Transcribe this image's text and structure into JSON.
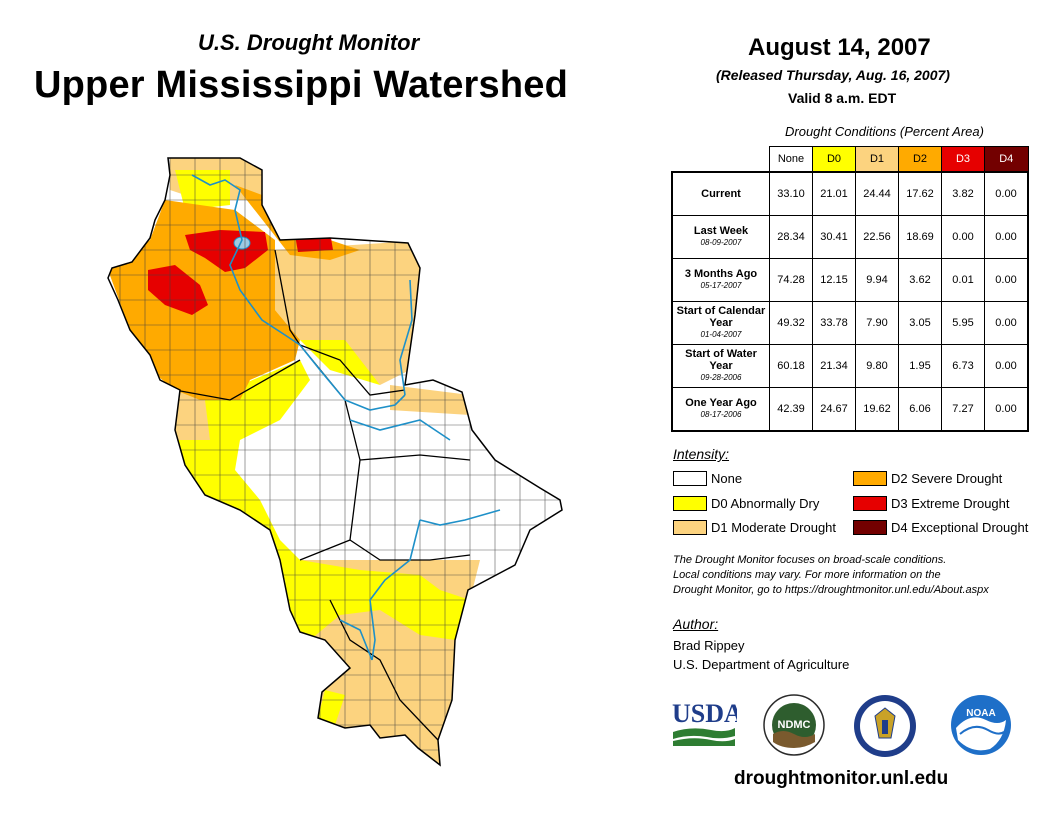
{
  "header": {
    "subtitle": "U.S. Drought Monitor",
    "title": "Upper Mississippi Watershed"
  },
  "release": {
    "date": "August 14, 2007",
    "released": "(Released Thursday, Aug. 16, 2007)",
    "valid": "Valid 8 a.m. EDT"
  },
  "table": {
    "caption": "Drought Conditions (Percent Area)",
    "columns": [
      "None",
      "D0",
      "D1",
      "D2",
      "D3",
      "D4"
    ],
    "rows": [
      {
        "label": "Current",
        "date": "",
        "values": [
          "33.10",
          "21.01",
          "24.44",
          "17.62",
          "3.82",
          "0.00"
        ]
      },
      {
        "label": "Last Week",
        "date": "08-09-2007",
        "values": [
          "28.34",
          "30.41",
          "22.56",
          "18.69",
          "0.00",
          "0.00"
        ]
      },
      {
        "label": "3 Months Ago",
        "date": "05-17-2007",
        "values": [
          "74.28",
          "12.15",
          "9.94",
          "3.62",
          "0.01",
          "0.00"
        ]
      },
      {
        "label": "Start of Calendar Year",
        "date": "01-04-2007",
        "values": [
          "49.32",
          "33.78",
          "7.90",
          "3.05",
          "5.95",
          "0.00"
        ]
      },
      {
        "label": "Start of Water Year",
        "date": "09-28-2006",
        "values": [
          "60.18",
          "21.34",
          "9.80",
          "1.95",
          "6.73",
          "0.00"
        ]
      },
      {
        "label": "One Year Ago",
        "date": "08-17-2006",
        "values": [
          "42.39",
          "24.67",
          "19.62",
          "6.06",
          "7.27",
          "0.00"
        ]
      }
    ]
  },
  "legend": {
    "title": "Intensity:",
    "items": [
      {
        "label": "None",
        "color": "#ffffff"
      },
      {
        "label": "D0 Abnormally Dry",
        "color": "#ffff00"
      },
      {
        "label": "D1 Moderate Drought",
        "color": "#fcd37f"
      },
      {
        "label": "D2 Severe Drought",
        "color": "#ffaa00"
      },
      {
        "label": "D3 Extreme Drought",
        "color": "#e60000"
      },
      {
        "label": "D4 Exceptional Drought",
        "color": "#730000"
      }
    ]
  },
  "note": {
    "line1": "The Drought Monitor focuses on broad-scale conditions.",
    "line2": "Local conditions may vary. For more information on the",
    "line3": "Drought Monitor, go to https://droughtmonitor.unl.edu/About.aspx"
  },
  "author": {
    "title": "Author:",
    "name": "Brad Rippey",
    "org": "U.S. Department of Agriculture"
  },
  "logos": {
    "usda": "USDA",
    "ndmc": "NDMC",
    "noaa": "NOAA"
  },
  "website": "droughtmonitor.unl.edu"
}
